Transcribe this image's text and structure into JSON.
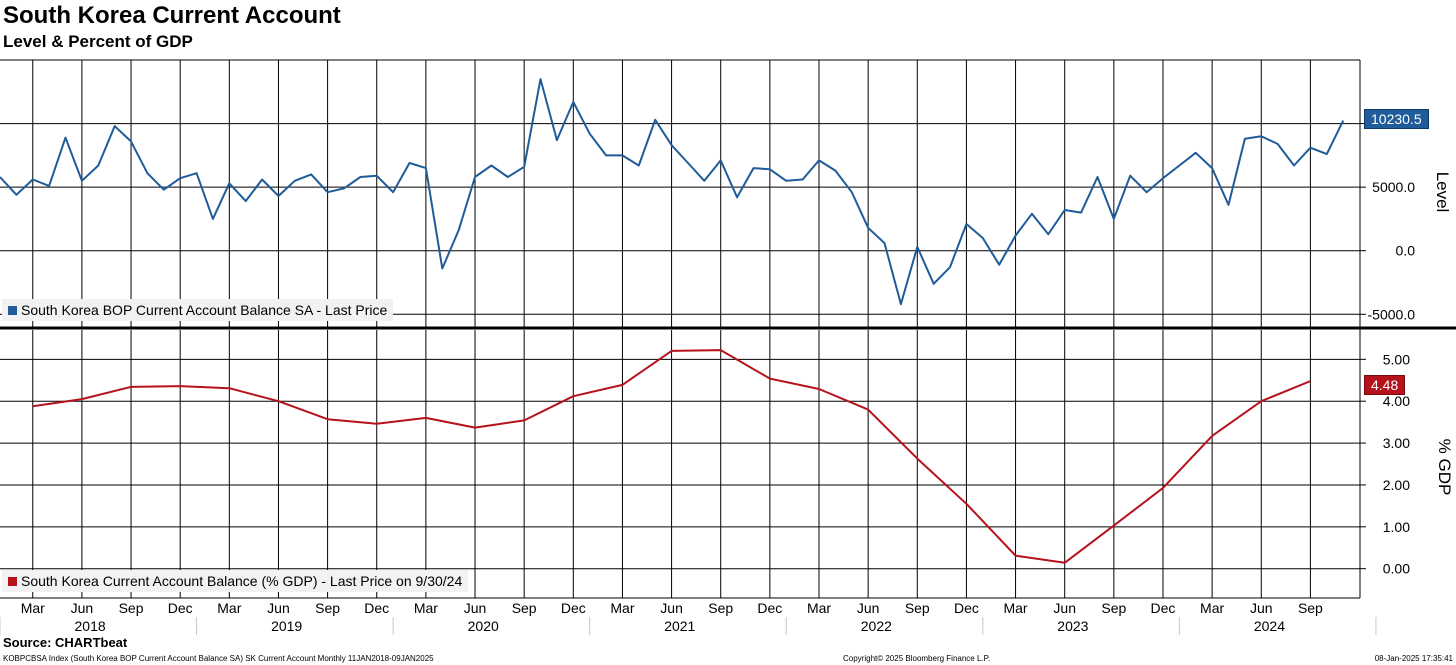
{
  "title": "South Korea Current Account",
  "subtitle": "Level & Percent of GDP",
  "source": "Source: CHARTbeat",
  "footer_left": "KOBPCBSA Index (South Korea BOP Current Account Balance SA) SK Current Account  Monthly 11JAN2018-09JAN2025",
  "footer_center": "Copyright© 2025 Bloomberg Finance L.P.",
  "footer_right": "08-Jan-2025 17:35:41",
  "colors": {
    "level": "#1f5c99",
    "gdp": "#b5121b"
  },
  "chart_data": [
    {
      "type": "line",
      "title": "South Korea Current Account",
      "ylabel": "Level",
      "ylim": [
        -6000,
        15000
      ],
      "yticks": [
        -5000,
        0,
        5000,
        10000
      ],
      "ytick_labels": [
        "-5000.0",
        "0.0",
        "5000.0",
        ""
      ],
      "grid": true,
      "legend": "bottom-left",
      "last_value_label": "10230.5",
      "series": [
        {
          "name": "South Korea BOP Current Account Balance SA - Last Price",
          "start": "2018-01",
          "frequency": "monthly",
          "values": [
            5800,
            4400,
            5600,
            5100,
            8900,
            5500,
            6700,
            9800,
            8600,
            6100,
            4800,
            5700,
            6100,
            2500,
            5300,
            3900,
            5600,
            4300,
            5500,
            6000,
            4600,
            4900,
            5800,
            5900,
            4600,
            6900,
            6500,
            -1400,
            1600,
            5800,
            6700,
            5800,
            6600,
            13500,
            8700,
            11700,
            9200,
            7500,
            7500,
            6700,
            10300,
            8300,
            6900,
            5500,
            7100,
            4200,
            6500,
            6400,
            5500,
            5600,
            7100,
            6300,
            4600,
            1800,
            600,
            -4200,
            300,
            -2600,
            -1300,
            2100,
            1000,
            -1100,
            1200,
            2900,
            1300,
            3200,
            3000,
            5800,
            2500,
            5900,
            4600,
            5700,
            6700,
            7700,
            6500,
            3600,
            8800,
            9000,
            8400,
            6700,
            8100,
            7600,
            10230.5
          ]
        }
      ]
    },
    {
      "type": "line",
      "ylabel": "% GDP",
      "ylim": [
        -0.7,
        5.7
      ],
      "yticks": [
        0,
        1,
        2,
        3,
        4,
        5
      ],
      "ytick_labels": [
        "0.00",
        "1.00",
        "2.00",
        "3.00",
        "4.00",
        "5.00"
      ],
      "grid": true,
      "legend": "bottom-left",
      "last_value_label": "4.48",
      "series": [
        {
          "name": "South Korea Current Account Balance (% GDP) - Last Price on 9/30/24",
          "x": [
            "2018-03-31",
            "2018-06-30",
            "2018-09-30",
            "2018-12-31",
            "2019-03-31",
            "2019-06-30",
            "2019-09-30",
            "2019-12-31",
            "2020-03-31",
            "2020-06-30",
            "2020-09-30",
            "2020-12-31",
            "2021-03-31",
            "2021-06-30",
            "2021-09-30",
            "2021-12-31",
            "2022-03-31",
            "2022-06-30",
            "2022-09-30",
            "2022-12-31",
            "2023-03-31",
            "2023-06-30",
            "2023-09-30",
            "2023-12-31",
            "2024-03-31",
            "2024-06-30",
            "2024-09-30"
          ],
          "values": [
            3.88,
            4.05,
            4.34,
            4.36,
            4.31,
            4.0,
            3.57,
            3.46,
            3.6,
            3.37,
            3.54,
            4.12,
            4.39,
            5.2,
            5.22,
            4.54,
            4.29,
            3.8,
            2.63,
            1.55,
            0.31,
            0.14,
            1.03,
            1.93,
            3.17,
            4.0,
            4.48
          ]
        }
      ]
    }
  ],
  "x_axis": {
    "months": [
      "Mar",
      "Jun",
      "Sep",
      "Dec",
      "Mar",
      "Jun",
      "Sep",
      "Dec",
      "Mar",
      "Jun",
      "Sep",
      "Dec",
      "Mar",
      "Jun",
      "Sep",
      "Dec",
      "Mar",
      "Jun",
      "Sep",
      "Dec",
      "Mar",
      "Jun",
      "Sep",
      "Dec",
      "Mar",
      "Jun",
      "Sep"
    ],
    "years": [
      "2018",
      "2019",
      "2020",
      "2021",
      "2022",
      "2023",
      "2024"
    ]
  }
}
